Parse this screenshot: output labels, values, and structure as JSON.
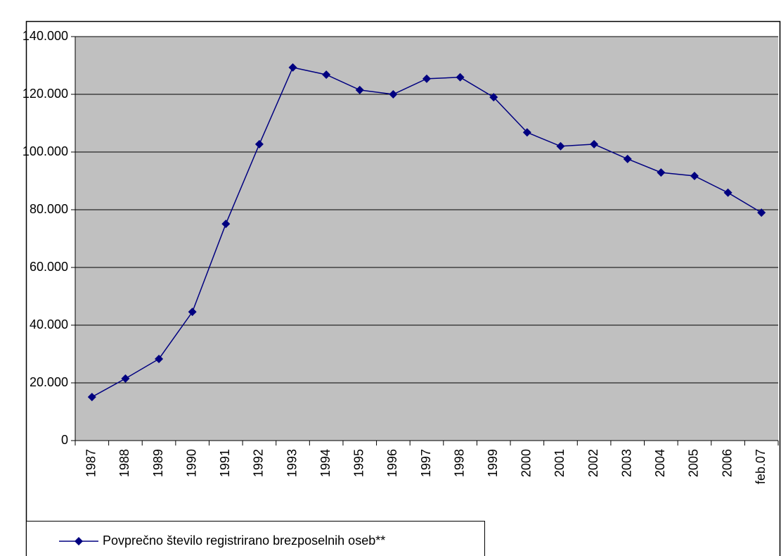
{
  "chart_data": {
    "type": "line",
    "categories": [
      "1987",
      "1988",
      "1989",
      "1990",
      "1991",
      "1992",
      "1993",
      "1994",
      "1995",
      "1996",
      "1997",
      "1998",
      "1999",
      "2000",
      "2001",
      "2002",
      "2003",
      "2004",
      "2005",
      "2006",
      "feb.07"
    ],
    "series": [
      {
        "name": "Povprečno število registrirano brezposelnih oseb**",
        "color": "#000080",
        "values": [
          15100,
          21500,
          28300,
          44600,
          75100,
          102700,
          129300,
          126800,
          121500,
          120000,
          125400,
          125900,
          119000,
          106800,
          102000,
          102700,
          97600,
          92900,
          91700,
          85900,
          79000
        ]
      }
    ],
    "ylim": [
      0,
      140000
    ],
    "yticks": [
      0,
      {
        "value": 20000,
        "label": "20.000"
      },
      {
        "value": 40000,
        "label": "40.000"
      },
      {
        "value": 60000,
        "label": "60.000"
      },
      {
        "value": 80000,
        "label": "80.000"
      },
      {
        "value": 100000,
        "label": "100.000"
      },
      {
        "value": 120000,
        "label": "120.000"
      },
      {
        "value": 140000,
        "label": "140.000"
      }
    ],
    "grid": true,
    "plot_background": "#c0c0c0"
  }
}
